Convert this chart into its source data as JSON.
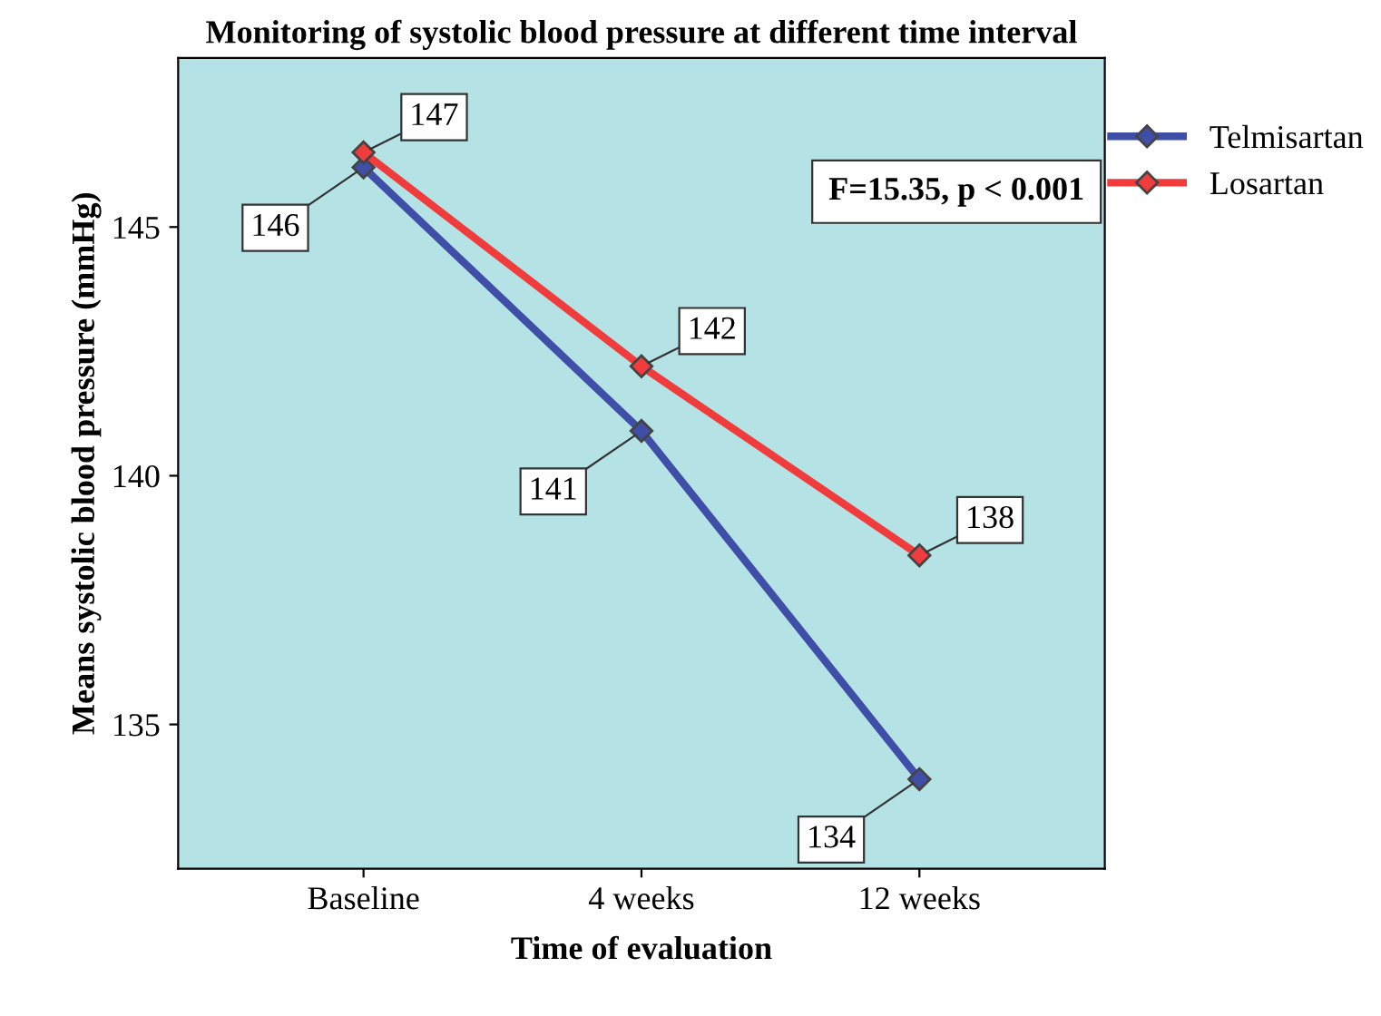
{
  "chart_data": {
    "type": "line",
    "title": "Monitoring of systolic blood pressure at different time interval",
    "xlabel": "Time of evaluation",
    "ylabel": "Means systolic blood pressure (mmHg)",
    "categories": [
      "Baseline",
      "4 weeks",
      "12 weeks"
    ],
    "series": [
      {
        "name": "Telmisartan",
        "color": "#3f4fa8",
        "values": [
          146.2,
          140.9,
          133.9
        ],
        "value_labels": [
          "146",
          "141",
          "134"
        ]
      },
      {
        "name": "Losartan",
        "color": "#f03c3c",
        "values": [
          146.5,
          142.2,
          138.4
        ],
        "value_labels": [
          "147",
          "142",
          "138"
        ]
      }
    ],
    "ylim": [
      132.1,
      148.4
    ],
    "yticks": [
      135,
      140,
      145
    ],
    "marker": "diamond",
    "line_style": "solid",
    "grid": false,
    "legend": "top right",
    "annotations": [
      "F=15.35, p < 0.001"
    ]
  }
}
